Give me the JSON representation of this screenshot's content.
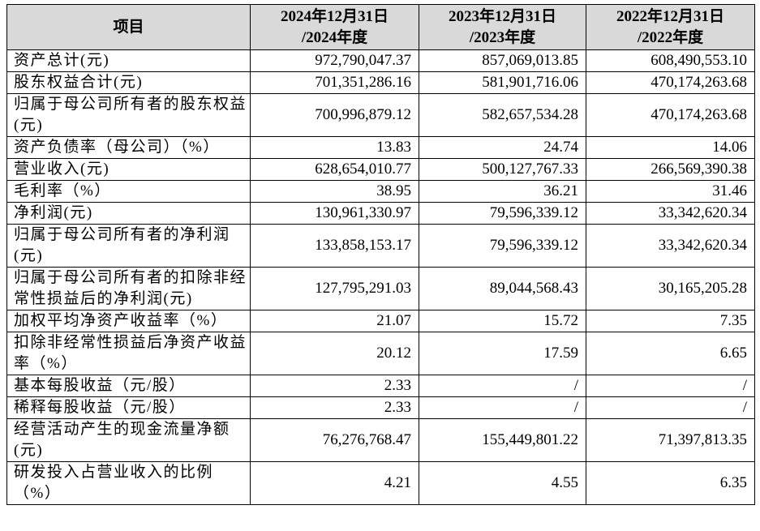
{
  "table": {
    "header": [
      "项目",
      "2024年12月31日\n/2024年度",
      "2023年12月31日\n/2023年度",
      "2022年12月31日\n/2022年度"
    ],
    "rows": [
      [
        "资产总计(元)",
        "972,790,047.37",
        "857,069,013.85",
        "608,490,553.10"
      ],
      [
        "股东权益合计(元)",
        "701,351,286.16",
        "581,901,716.06",
        "470,174,263.68"
      ],
      [
        "归属于母公司所有者的股东权益(元)",
        "700,996,879.12",
        "582,657,534.28",
        "470,174,263.68"
      ],
      [
        "资产负债率（母公司）（%）",
        "13.83",
        "24.74",
        "14.06"
      ],
      [
        "营业收入(元)",
        "628,654,010.77",
        "500,127,767.33",
        "266,569,390.38"
      ],
      [
        "毛利率（%）",
        "38.95",
        "36.21",
        "31.46"
      ],
      [
        "净利润(元)",
        "130,961,330.97",
        "79,596,339.12",
        "33,342,620.34"
      ],
      [
        "归属于母公司所有者的净利润(元)",
        "133,858,153.17",
        "79,596,339.12",
        "33,342,620.34"
      ],
      [
        "归属于母公司所有者的扣除非经常性损益后的净利润(元)",
        "127,795,291.03",
        "89,044,568.43",
        "30,165,205.28"
      ],
      [
        "加权平均净资产收益率（%）",
        "21.07",
        "15.72",
        "7.35"
      ],
      [
        "扣除非经常性损益后净资产收益率（%）",
        "20.12",
        "17.59",
        "6.65"
      ],
      [
        "基本每股收益（元/股）",
        "2.33",
        "/",
        "/"
      ],
      [
        "稀释每股收益（元/股）",
        "2.33",
        "/",
        "/"
      ],
      [
        "经营活动产生的现金流量净额(元)",
        "76,276,768.47",
        "155,449,801.22",
        "71,397,813.35"
      ],
      [
        "研发投入占营业收入的比例（%）",
        "4.21",
        "4.55",
        "6.35"
      ]
    ]
  }
}
